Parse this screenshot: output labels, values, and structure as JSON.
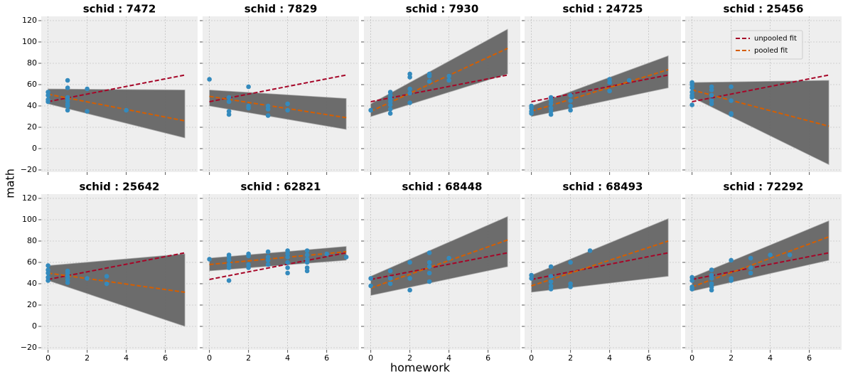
{
  "figure": {
    "xlabel": "homework",
    "ylabel": "math"
  },
  "chart_data": [
    {
      "type": "scatter",
      "title": "schid : 7472",
      "xlim": [
        -0.35,
        7.65
      ],
      "ylim": [
        -22,
        124
      ],
      "xticks": [
        0,
        2,
        4,
        6
      ],
      "yticks": [
        {
          "value": -20,
          "label": "−20"
        },
        0,
        20,
        40,
        60,
        80,
        100,
        120
      ],
      "grid": true,
      "band": {
        "color": "#666666",
        "x": [
          0,
          7
        ],
        "lower": [
          42,
          10
        ],
        "upper": [
          56,
          55
        ]
      },
      "points": {
        "color": "#348ABD",
        "x": [
          0,
          0,
          0,
          0,
          1,
          1,
          1,
          1,
          1,
          1,
          1,
          2,
          2,
          4
        ],
        "values": [
          53,
          50,
          46,
          44,
          64,
          57,
          48,
          45,
          42,
          40,
          36,
          56,
          35,
          36
        ]
      },
      "series": [
        {
          "color": "#A60628",
          "x": [
            0,
            7
          ],
          "values": [
            44,
            69
          ]
        },
        {
          "color": "#D55E00",
          "x": [
            0,
            7
          ],
          "values": [
            51,
            26
          ]
        }
      ]
    },
    {
      "type": "scatter",
      "title": "schid : 7829",
      "xlim": [
        -0.35,
        7.65
      ],
      "ylim": [
        -22,
        124
      ],
      "xticks": [
        0,
        2,
        4,
        6
      ],
      "yticks": [
        {
          "value": -20,
          "label": "−20"
        },
        0,
        20,
        40,
        60,
        80,
        100,
        120
      ],
      "grid": true,
      "band": {
        "color": "#666666",
        "x": [
          0,
          7
        ],
        "lower": [
          40,
          18
        ],
        "upper": [
          55,
          47
        ]
      },
      "points": {
        "color": "#348ABD",
        "x": [
          0,
          1,
          1,
          1,
          1,
          2,
          2,
          2,
          3,
          3,
          3,
          4,
          4
        ],
        "values": [
          65,
          48,
          44,
          35,
          32,
          58,
          40,
          38,
          40,
          37,
          31,
          42,
          36
        ]
      },
      "series": [
        {
          "color": "#A60628",
          "x": [
            0,
            7
          ],
          "values": [
            44,
            69
          ]
        },
        {
          "color": "#D55E00",
          "x": [
            0,
            7
          ],
          "values": [
            49,
            29
          ]
        }
      ]
    },
    {
      "type": "scatter",
      "title": "schid : 7930",
      "xlim": [
        -0.35,
        7.65
      ],
      "ylim": [
        -22,
        124
      ],
      "xticks": [
        0,
        2,
        4,
        6
      ],
      "yticks": [
        {
          "value": -20,
          "label": "−20"
        },
        0,
        20,
        40,
        60,
        80,
        100,
        120
      ],
      "grid": true,
      "band": {
        "color": "#666666",
        "x": [
          0,
          7
        ],
        "lower": [
          30,
          70
        ],
        "upper": [
          42,
          112
        ]
      },
      "points": {
        "color": "#348ABD",
        "x": [
          0,
          1,
          1,
          1,
          1,
          1,
          1,
          1,
          2,
          2,
          2,
          2,
          2,
          3,
          3,
          3,
          4,
          4
        ],
        "values": [
          36,
          53,
          50,
          47,
          44,
          41,
          37,
          33,
          70,
          67,
          56,
          52,
          43,
          70,
          68,
          63,
          68,
          64
        ]
      },
      "series": [
        {
          "color": "#A60628",
          "x": [
            0,
            7
          ],
          "values": [
            44,
            69
          ]
        },
        {
          "color": "#D55E00",
          "x": [
            0,
            7
          ],
          "values": [
            35,
            94
          ]
        }
      ]
    },
    {
      "type": "scatter",
      "title": "schid : 24725",
      "xlim": [
        -0.35,
        7.65
      ],
      "ylim": [
        -22,
        124
      ],
      "xticks": [
        0,
        2,
        4,
        6
      ],
      "yticks": [
        {
          "value": -20,
          "label": "−20"
        },
        0,
        20,
        40,
        60,
        80,
        100,
        120
      ],
      "grid": true,
      "band": {
        "color": "#666666",
        "x": [
          0,
          7
        ],
        "lower": [
          30,
          57
        ],
        "upper": [
          40,
          87
        ]
      },
      "points": {
        "color": "#348ABD",
        "x": [
          0,
          0,
          0,
          0,
          1,
          1,
          1,
          1,
          1,
          1,
          2,
          2,
          2,
          2,
          4,
          4,
          4,
          5
        ],
        "values": [
          40,
          38,
          35,
          33,
          48,
          45,
          42,
          38,
          35,
          32,
          50,
          45,
          40,
          36,
          65,
          62,
          54,
          64
        ]
      },
      "series": [
        {
          "color": "#A60628",
          "x": [
            0,
            7
          ],
          "values": [
            44,
            69
          ]
        },
        {
          "color": "#D55E00",
          "x": [
            0,
            7
          ],
          "values": [
            35,
            74
          ]
        }
      ]
    },
    {
      "type": "scatter",
      "title": "schid : 25456",
      "xlim": [
        -0.35,
        7.65
      ],
      "ylim": [
        -22,
        124
      ],
      "xticks": [
        0,
        2,
        4,
        6
      ],
      "yticks": [
        {
          "value": -20,
          "label": "−20"
        },
        0,
        20,
        40,
        60,
        80,
        100,
        120
      ],
      "grid": true,
      "legend": "upper right",
      "band": {
        "color": "#666666",
        "x": [
          0,
          7
        ],
        "lower": [
          48,
          -15
        ],
        "upper": [
          62,
          64
        ]
      },
      "points": {
        "color": "#348ABD",
        "x": [
          0,
          0,
          0,
          0,
          0,
          0,
          0,
          1,
          1,
          1,
          1,
          1,
          2,
          2,
          2,
          2
        ],
        "values": [
          62,
          60,
          57,
          53,
          50,
          48,
          41,
          58,
          55,
          50,
          45,
          42,
          58,
          45,
          33,
          32
        ]
      },
      "series": [
        {
          "name": "unpooled fit",
          "color": "#A60628",
          "x": [
            0,
            7
          ],
          "values": [
            44,
            69
          ]
        },
        {
          "name": "pooled fit",
          "color": "#D55E00",
          "x": [
            0,
            7
          ],
          "values": [
            55,
            21
          ]
        }
      ]
    },
    {
      "type": "scatter",
      "title": "schid : 25642",
      "xlim": [
        -0.35,
        7.65
      ],
      "ylim": [
        -22,
        124
      ],
      "xticks": [
        0,
        2,
        4,
        6
      ],
      "yticks": [
        {
          "value": -20,
          "label": "−20"
        },
        0,
        20,
        40,
        60,
        80,
        100,
        120
      ],
      "grid": true,
      "band": {
        "color": "#666666",
        "x": [
          0,
          7
        ],
        "lower": [
          43,
          0
        ],
        "upper": [
          57,
          68
        ]
      },
      "points": {
        "color": "#348ABD",
        "x": [
          0,
          0,
          0,
          0,
          0,
          1,
          1,
          1,
          1,
          1,
          2,
          3,
          3
        ],
        "values": [
          57,
          53,
          50,
          46,
          43,
          52,
          50,
          47,
          44,
          41,
          45,
          47,
          40
        ]
      },
      "series": [
        {
          "color": "#A60628",
          "x": [
            0,
            7
          ],
          "values": [
            44,
            69
          ]
        },
        {
          "color": "#D55E00",
          "x": [
            0,
            7
          ],
          "values": [
            50,
            32
          ]
        }
      ]
    },
    {
      "type": "scatter",
      "title": "schid : 62821",
      "xlim": [
        -0.35,
        7.65
      ],
      "ylim": [
        -22,
        124
      ],
      "xticks": [
        0,
        2,
        4,
        6
      ],
      "yticks": [
        {
          "value": -20,
          "label": "−20"
        },
        0,
        20,
        40,
        60,
        80,
        100,
        120
      ],
      "grid": true,
      "band": {
        "color": "#666666",
        "x": [
          0,
          7
        ],
        "lower": [
          52,
          62
        ],
        "upper": [
          64,
          75
        ]
      },
      "points": {
        "color": "#348ABD",
        "x": [
          0,
          1,
          1,
          1,
          1,
          1,
          1,
          2,
          2,
          2,
          2,
          3,
          3,
          3,
          3,
          4,
          4,
          4,
          4,
          4,
          4,
          5,
          5,
          5,
          5,
          5,
          5,
          6,
          7
        ],
        "values": [
          63,
          67,
          65,
          62,
          58,
          55,
          43,
          68,
          66,
          58,
          55,
          70,
          65,
          62,
          58,
          71,
          68,
          65,
          60,
          55,
          50,
          71,
          67,
          63,
          60,
          55,
          52,
          68,
          65
        ]
      },
      "series": [
        {
          "color": "#A60628",
          "x": [
            0,
            7
          ],
          "values": [
            44,
            69
          ]
        },
        {
          "color": "#D55E00",
          "x": [
            0,
            7
          ],
          "values": [
            58,
            70
          ]
        }
      ]
    },
    {
      "type": "scatter",
      "title": "schid : 68448",
      "xlim": [
        -0.35,
        7.65
      ],
      "ylim": [
        -22,
        124
      ],
      "xticks": [
        0,
        2,
        4,
        6
      ],
      "yticks": [
        {
          "value": -20,
          "label": "−20"
        },
        0,
        20,
        40,
        60,
        80,
        100,
        120
      ],
      "grid": true,
      "band": {
        "color": "#666666",
        "x": [
          0,
          7
        ],
        "lower": [
          29,
          56
        ],
        "upper": [
          47,
          103
        ]
      },
      "points": {
        "color": "#348ABD",
        "x": [
          0,
          0,
          1,
          1,
          1,
          2,
          2,
          2,
          3,
          3,
          3,
          3,
          3,
          4
        ],
        "values": [
          45,
          38,
          52,
          45,
          40,
          60,
          45,
          34,
          69,
          60,
          56,
          50,
          42,
          64
        ]
      },
      "series": [
        {
          "color": "#A60628",
          "x": [
            0,
            7
          ],
          "values": [
            44,
            69
          ]
        },
        {
          "color": "#D55E00",
          "x": [
            0,
            7
          ],
          "values": [
            36,
            81
          ]
        }
      ]
    },
    {
      "type": "scatter",
      "title": "schid : 68493",
      "xlim": [
        -0.35,
        7.65
      ],
      "ylim": [
        -22,
        124
      ],
      "xticks": [
        0,
        2,
        4,
        6
      ],
      "yticks": [
        {
          "value": -20,
          "label": "−20"
        },
        0,
        20,
        40,
        60,
        80,
        100,
        120
      ],
      "grid": true,
      "band": {
        "color": "#666666",
        "x": [
          0,
          7
        ],
        "lower": [
          32,
          47
        ],
        "upper": [
          48,
          101
        ]
      },
      "points": {
        "color": "#348ABD",
        "x": [
          0,
          0,
          1,
          1,
          1,
          1,
          1,
          2,
          2,
          2,
          3
        ],
        "values": [
          48,
          45,
          56,
          47,
          42,
          38,
          35,
          60,
          40,
          37,
          71
        ]
      },
      "series": [
        {
          "color": "#A60628",
          "x": [
            0,
            7
          ],
          "values": [
            44,
            69
          ]
        },
        {
          "color": "#D55E00",
          "x": [
            0,
            7
          ],
          "values": [
            38,
            80
          ]
        }
      ]
    },
    {
      "type": "scatter",
      "title": "schid : 72292",
      "xlim": [
        -0.35,
        7.65
      ],
      "ylim": [
        -22,
        124
      ],
      "xticks": [
        0,
        2,
        4,
        6
      ],
      "yticks": [
        {
          "value": -20,
          "label": "−20"
        },
        0,
        20,
        40,
        60,
        80,
        100,
        120
      ],
      "grid": true,
      "band": {
        "color": "#666666",
        "x": [
          0,
          7
        ],
        "lower": [
          33,
          62
        ],
        "upper": [
          46,
          99
        ]
      },
      "points": {
        "color": "#348ABD",
        "x": [
          0,
          0,
          0,
          0,
          1,
          1,
          1,
          1,
          1,
          1,
          2,
          2,
          2,
          3,
          3,
          3,
          4,
          5
        ],
        "values": [
          46,
          43,
          37,
          35,
          53,
          48,
          45,
          40,
          37,
          34,
          62,
          45,
          43,
          64,
          55,
          50,
          67,
          67
        ]
      },
      "series": [
        {
          "color": "#A60628",
          "x": [
            0,
            7
          ],
          "values": [
            44,
            69
          ]
        },
        {
          "color": "#D55E00",
          "x": [
            0,
            7
          ],
          "values": [
            37,
            84
          ]
        }
      ]
    }
  ]
}
